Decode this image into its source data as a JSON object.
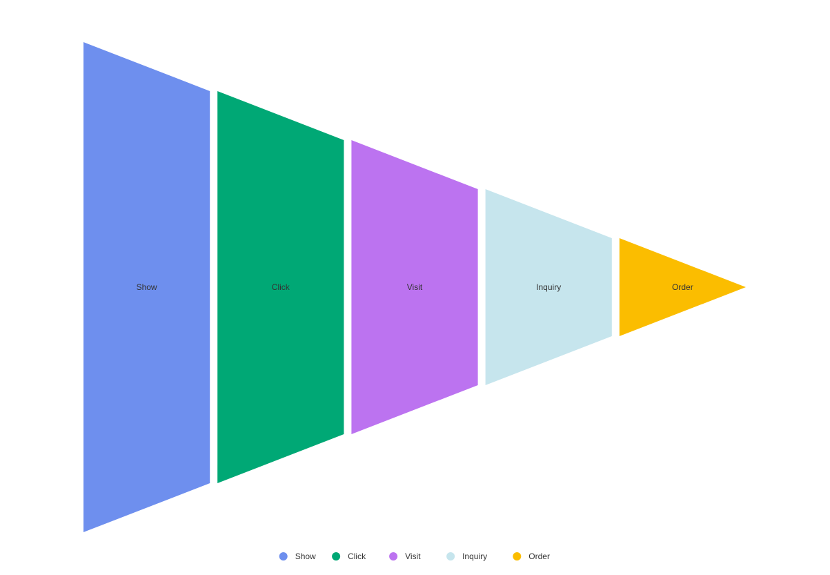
{
  "chart_data": {
    "type": "funnel",
    "orientation": "horizontal",
    "categories": [
      "Show",
      "Click",
      "Visit",
      "Inquiry",
      "Order"
    ],
    "values": [
      100,
      80,
      60,
      40,
      20
    ],
    "colors": [
      "#6e8fee",
      "#00a875",
      "#bc73f0",
      "#c6e5ed",
      "#fbbd00"
    ],
    "legend": {
      "position": "bottom",
      "items": [
        "Show",
        "Click",
        "Visit",
        "Inquiry",
        "Order"
      ]
    }
  }
}
